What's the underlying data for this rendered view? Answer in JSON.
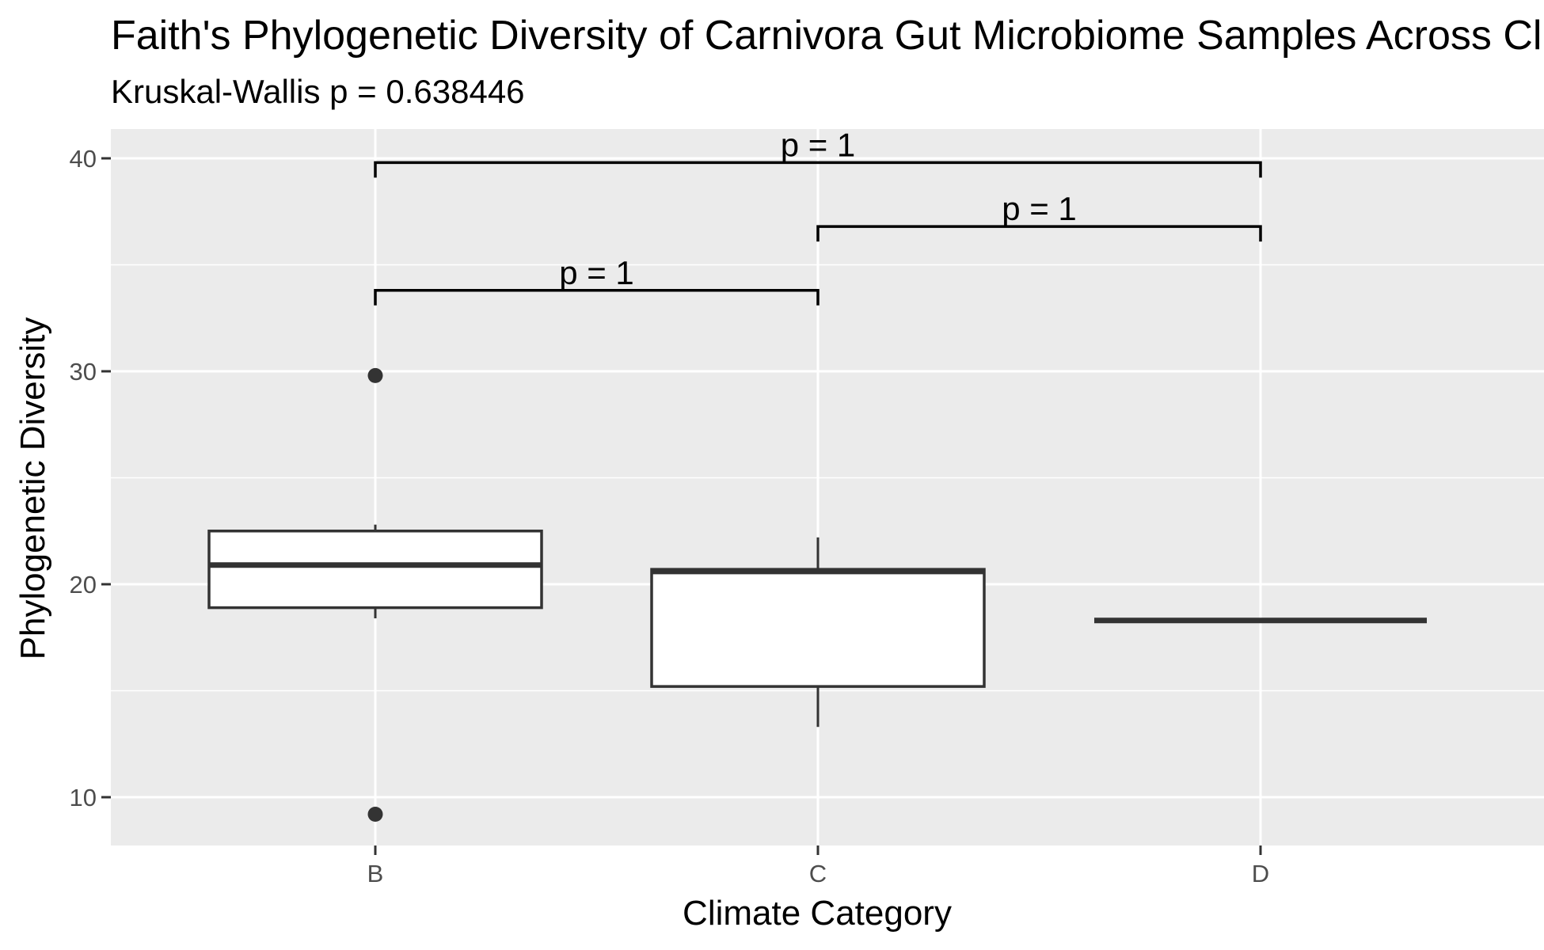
{
  "chart_data": {
    "type": "boxplot",
    "title": "Faith's Phylogenetic Diversity of Carnivora Gut Microbiome Samples Across Climate Categories",
    "subtitle": "Kruskal-Wallis p = 0.638446",
    "xlabel": "Climate Category",
    "ylabel": "Phylogenetic Diversity",
    "categories": [
      "B",
      "C",
      "D"
    ],
    "y_ticks": [
      10,
      20,
      30,
      40
    ],
    "ylim": [
      7.5,
      41.5
    ],
    "grid": true,
    "legend": "none",
    "boxes": [
      {
        "category": "B",
        "whisker_low": 18.4,
        "q1": 18.9,
        "median": 20.9,
        "q3": 22.5,
        "whisker_high": 22.8,
        "outliers": [
          29.8,
          9.2
        ]
      },
      {
        "category": "C",
        "whisker_low": 13.3,
        "q1": 15.2,
        "median": 20.6,
        "q3": 20.7,
        "whisker_high": 22.2,
        "outliers": []
      },
      {
        "category": "D",
        "whisker_low": 18.3,
        "q1": 18.3,
        "median": 18.3,
        "q3": 18.3,
        "whisker_high": 18.3,
        "outliers": []
      }
    ],
    "comparisons": [
      {
        "group1": "B",
        "group2": "D",
        "y": 39.8,
        "label": "p = 1"
      },
      {
        "group1": "C",
        "group2": "D",
        "y": 36.8,
        "label": "p = 1"
      },
      {
        "group1": "B",
        "group2": "C",
        "y": 33.8,
        "label": "p = 1"
      }
    ],
    "colors": {
      "panel_background": "#ebebeb",
      "grid": "#ffffff",
      "box_fill": "#ffffff",
      "box_line": "#333333",
      "bracket": "#000000",
      "tick_text": "#4d4d4d"
    }
  }
}
